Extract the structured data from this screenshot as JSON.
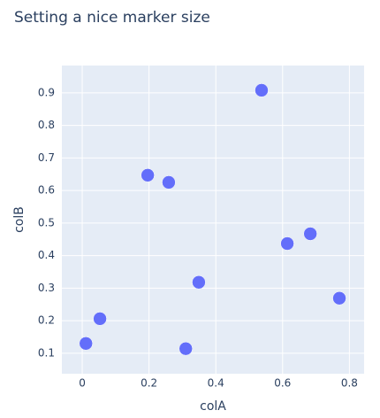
{
  "chart_data": {
    "type": "scatter",
    "title": "Setting a nice marker size",
    "x_label": "colA",
    "y_label": "colB",
    "series": [
      {
        "name": "colB",
        "color": "#636efa",
        "x": [
          0.011,
          0.053,
          0.196,
          0.259,
          0.31,
          0.349,
          0.537,
          0.614,
          0.683,
          0.77
        ],
        "values": [
          0.13,
          0.206,
          0.647,
          0.625,
          0.114,
          0.318,
          0.908,
          0.437,
          0.467,
          0.269
        ]
      }
    ],
    "xlim": [
      -0.061,
      0.844
    ],
    "xticks": [
      0,
      0.2,
      0.4,
      0.6,
      0.8
    ],
    "ylim": [
      0.037,
      0.984
    ],
    "yticks": [
      0.1,
      0.2,
      0.3,
      0.4,
      0.5,
      0.6,
      0.7,
      0.8,
      0.9
    ],
    "grid": true
  }
}
